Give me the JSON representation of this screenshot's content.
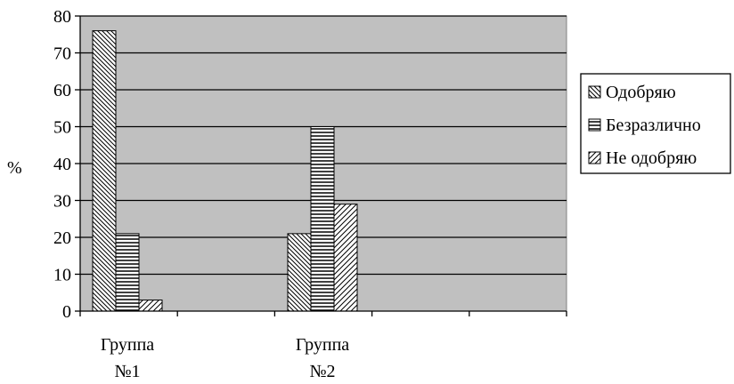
{
  "chart_data": {
    "type": "bar",
    "categories": [
      [
        "Группа",
        "№1"
      ],
      [
        "Группа",
        "№2"
      ]
    ],
    "series": [
      {
        "name": "Одобряю",
        "values": [
          76,
          21
        ]
      },
      {
        "name": "Безразлично",
        "values": [
          21,
          50
        ]
      },
      {
        "name": "Не одобряю",
        "values": [
          3,
          29
        ]
      }
    ],
    "ylabel": "%",
    "ylim": [
      0,
      80
    ],
    "yticks": [
      0,
      10,
      20,
      30,
      40,
      50,
      60,
      70,
      80
    ],
    "grid": true,
    "legend_position": "right",
    "colors": {
      "plot_background": "#c0c0c0",
      "bar_fill": "#ffffff",
      "bar_pattern": "#000000",
      "grid": "#000000"
    }
  }
}
